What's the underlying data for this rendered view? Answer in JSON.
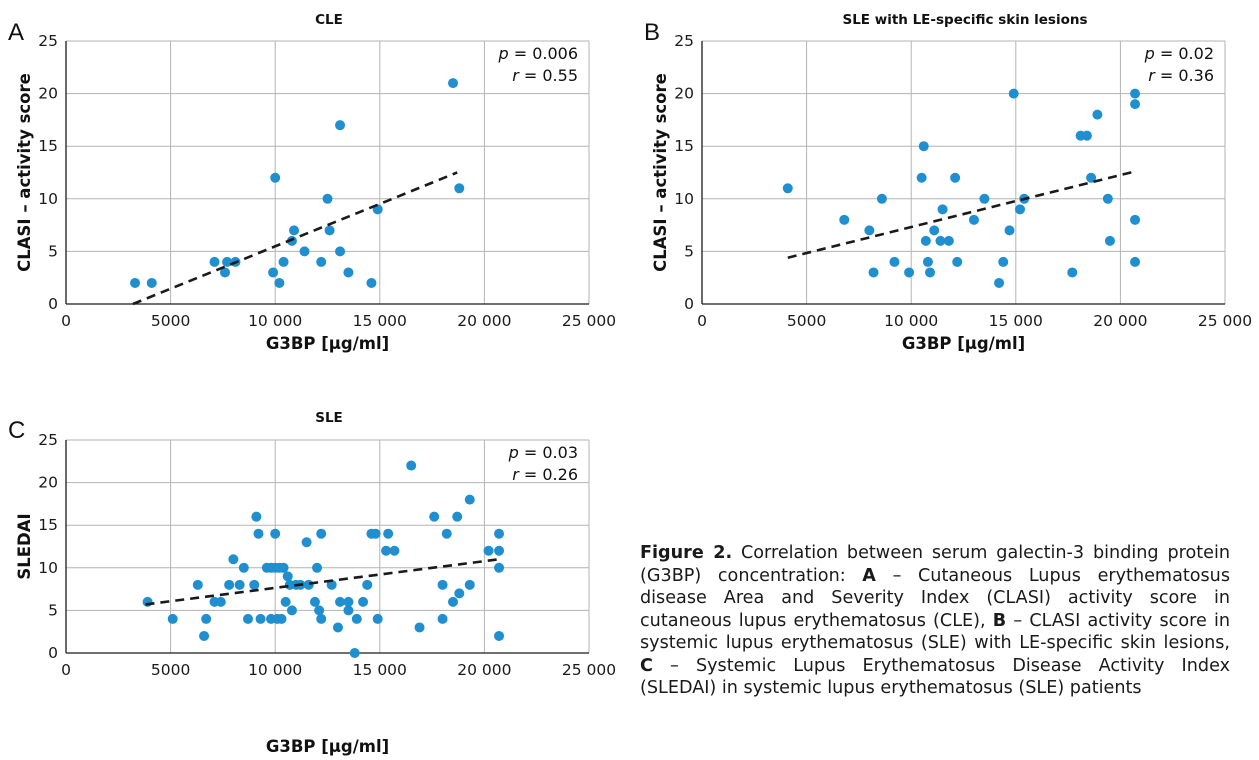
{
  "colors": {
    "point": "#1f8fcf",
    "grid": "#b3b3b3",
    "axis": "#1a1a1a",
    "trend": "#1a1a1a"
  },
  "chart_data": [
    {
      "panel_letter": "A",
      "type": "scatter",
      "title": "CLE",
      "xlabel": "G3BP [µg/ml]",
      "ylabel": "CLASI – activity score",
      "xlim": [
        0,
        25000
      ],
      "ylim": [
        0,
        25
      ],
      "x_ticks": [
        0,
        5000,
        10000,
        15000,
        20000,
        25000
      ],
      "x_tick_labels": [
        "0",
        "5000",
        "10 000",
        "15 000",
        "20 000",
        "25 000"
      ],
      "y_ticks": [
        0,
        5,
        10,
        15,
        20,
        25
      ],
      "y_tick_labels": [
        "0",
        "5",
        "10",
        "15",
        "20",
        "25"
      ],
      "grid": true,
      "stats": {
        "p_label": "p",
        "p_value": "= 0.006",
        "r_label": "r",
        "r_value": "= 0.55"
      },
      "trendline": {
        "x": [
          3200,
          18700
        ],
        "y": [
          0,
          12.5
        ]
      },
      "points": [
        [
          3300,
          2
        ],
        [
          4100,
          2
        ],
        [
          7100,
          4
        ],
        [
          7600,
          3
        ],
        [
          7700,
          4
        ],
        [
          8100,
          4
        ],
        [
          9900,
          3
        ],
        [
          10000,
          12
        ],
        [
          10200,
          2
        ],
        [
          10400,
          4
        ],
        [
          10800,
          6
        ],
        [
          10900,
          7
        ],
        [
          11400,
          5
        ],
        [
          12200,
          4
        ],
        [
          12500,
          10
        ],
        [
          12600,
          7
        ],
        [
          13100,
          17
        ],
        [
          13100,
          5
        ],
        [
          13500,
          3
        ],
        [
          14600,
          2
        ],
        [
          14900,
          9
        ],
        [
          18500,
          21
        ],
        [
          18800,
          11
        ]
      ]
    },
    {
      "panel_letter": "B",
      "type": "scatter",
      "title": "SLE with LE-specific skin lesions",
      "xlabel": "G3BP [µg/ml]",
      "ylabel": "CLASI – activity score",
      "xlim": [
        0,
        25000
      ],
      "ylim": [
        0,
        25
      ],
      "x_ticks": [
        0,
        5000,
        10000,
        15000,
        20000,
        25000
      ],
      "x_tick_labels": [
        "0",
        "5000",
        "10 000",
        "15 000",
        "20 000",
        "25 000"
      ],
      "y_ticks": [
        0,
        5,
        10,
        15,
        20,
        25
      ],
      "y_tick_labels": [
        "0",
        "5",
        "10",
        "15",
        "20",
        "25"
      ],
      "grid": true,
      "stats": {
        "p_label": "p",
        "p_value": "= 0.02",
        "r_label": "r",
        "r_value": "= 0.36"
      },
      "trendline": {
        "x": [
          4100,
          20700
        ],
        "y": [
          4.4,
          12.6
        ]
      },
      "points": [
        [
          4100,
          11
        ],
        [
          6800,
          8
        ],
        [
          8000,
          7
        ],
        [
          8200,
          3
        ],
        [
          8600,
          10
        ],
        [
          9200,
          4
        ],
        [
          9900,
          3
        ],
        [
          10500,
          12
        ],
        [
          10600,
          15
        ],
        [
          10700,
          6
        ],
        [
          10800,
          4
        ],
        [
          10900,
          3
        ],
        [
          11100,
          7
        ],
        [
          11400,
          6
        ],
        [
          11500,
          9
        ],
        [
          11800,
          6
        ],
        [
          12100,
          12
        ],
        [
          12200,
          4
        ],
        [
          13000,
          8
        ],
        [
          13500,
          10
        ],
        [
          14200,
          2
        ],
        [
          14400,
          4
        ],
        [
          14700,
          7
        ],
        [
          14900,
          20
        ],
        [
          15200,
          9
        ],
        [
          15400,
          10
        ],
        [
          17700,
          3
        ],
        [
          18100,
          16
        ],
        [
          18400,
          16
        ],
        [
          18600,
          12
        ],
        [
          18900,
          18
        ],
        [
          19400,
          10
        ],
        [
          19500,
          6
        ],
        [
          20700,
          20
        ],
        [
          20700,
          19
        ],
        [
          20700,
          8
        ],
        [
          20700,
          4
        ]
      ]
    },
    {
      "panel_letter": "C",
      "type": "scatter",
      "title": "SLE",
      "xlabel": "G3BP [µg/ml]",
      "ylabel": "SLEDAI",
      "xlim": [
        0,
        25000
      ],
      "ylim": [
        0,
        25
      ],
      "x_ticks": [
        0,
        5000,
        10000,
        15000,
        20000,
        25000
      ],
      "x_tick_labels": [
        "0",
        "5000",
        "10 000",
        "15 000",
        "20 000",
        "25 000"
      ],
      "y_ticks": [
        0,
        5,
        10,
        15,
        20,
        25
      ],
      "y_tick_labels": [
        "0",
        "5",
        "10",
        "15",
        "20",
        "25"
      ],
      "grid": true,
      "stats": {
        "p_label": "p",
        "p_value": "= 0.03",
        "r_label": "r",
        "r_value": "= 0.26"
      },
      "trendline": {
        "x": [
          3800,
          20700
        ],
        "y": [
          5.7,
          11
        ]
      },
      "points": [
        [
          3900,
          6
        ],
        [
          5100,
          4
        ],
        [
          6300,
          8
        ],
        [
          6600,
          2
        ],
        [
          6700,
          4
        ],
        [
          7100,
          6
        ],
        [
          7400,
          6
        ],
        [
          7800,
          8
        ],
        [
          8000,
          11
        ],
        [
          8300,
          8
        ],
        [
          8500,
          10
        ],
        [
          8700,
          4
        ],
        [
          9000,
          8
        ],
        [
          9100,
          16
        ],
        [
          9200,
          14
        ],
        [
          9300,
          4
        ],
        [
          9600,
          10
        ],
        [
          9800,
          10
        ],
        [
          9800,
          4
        ],
        [
          10000,
          14
        ],
        [
          10000,
          10
        ],
        [
          10100,
          4
        ],
        [
          10200,
          10
        ],
        [
          10300,
          4
        ],
        [
          10400,
          10
        ],
        [
          10500,
          6
        ],
        [
          10600,
          9
        ],
        [
          10700,
          8
        ],
        [
          10800,
          5
        ],
        [
          11000,
          8
        ],
        [
          11200,
          8
        ],
        [
          11500,
          13
        ],
        [
          11600,
          8
        ],
        [
          11900,
          6
        ],
        [
          12000,
          10
        ],
        [
          12100,
          5
        ],
        [
          12200,
          4
        ],
        [
          12200,
          14
        ],
        [
          12700,
          8
        ],
        [
          13000,
          3
        ],
        [
          13100,
          6
        ],
        [
          13500,
          6
        ],
        [
          13500,
          5
        ],
        [
          13800,
          0
        ],
        [
          13900,
          4
        ],
        [
          14200,
          6
        ],
        [
          14400,
          8
        ],
        [
          14600,
          14
        ],
        [
          14800,
          14
        ],
        [
          14900,
          4
        ],
        [
          15300,
          12
        ],
        [
          15400,
          14
        ],
        [
          15700,
          12
        ],
        [
          16500,
          22
        ],
        [
          16900,
          3
        ],
        [
          17600,
          16
        ],
        [
          18000,
          8
        ],
        [
          18000,
          4
        ],
        [
          18200,
          14
        ],
        [
          18500,
          6
        ],
        [
          18700,
          16
        ],
        [
          18800,
          7
        ],
        [
          19300,
          18
        ],
        [
          19300,
          8
        ],
        [
          20200,
          12
        ],
        [
          20700,
          14
        ],
        [
          20700,
          12
        ],
        [
          20700,
          10
        ],
        [
          20700,
          2
        ]
      ]
    }
  ],
  "caption": {
    "label": "Figure 2.",
    "t1": " Correlation between serum galectin-3 binding protein (G3BP) concentration: ",
    "a": "A",
    "t2": " – Cutaneous Lupus erythematosus disease Area and Severity Index (CLASI) activity score in cutaneous lupus erythematosus (CLE), ",
    "b": "B",
    "t3": " – CLASI activity score in systemic lupus erythematosus (SLE) with LE-specific skin lesions, ",
    "c": "C",
    "t4": " – Systemic Lupus Erythematosus Disease Activity Index (SLEDAI) in systemic lupus erythematosus (SLE) patients"
  }
}
